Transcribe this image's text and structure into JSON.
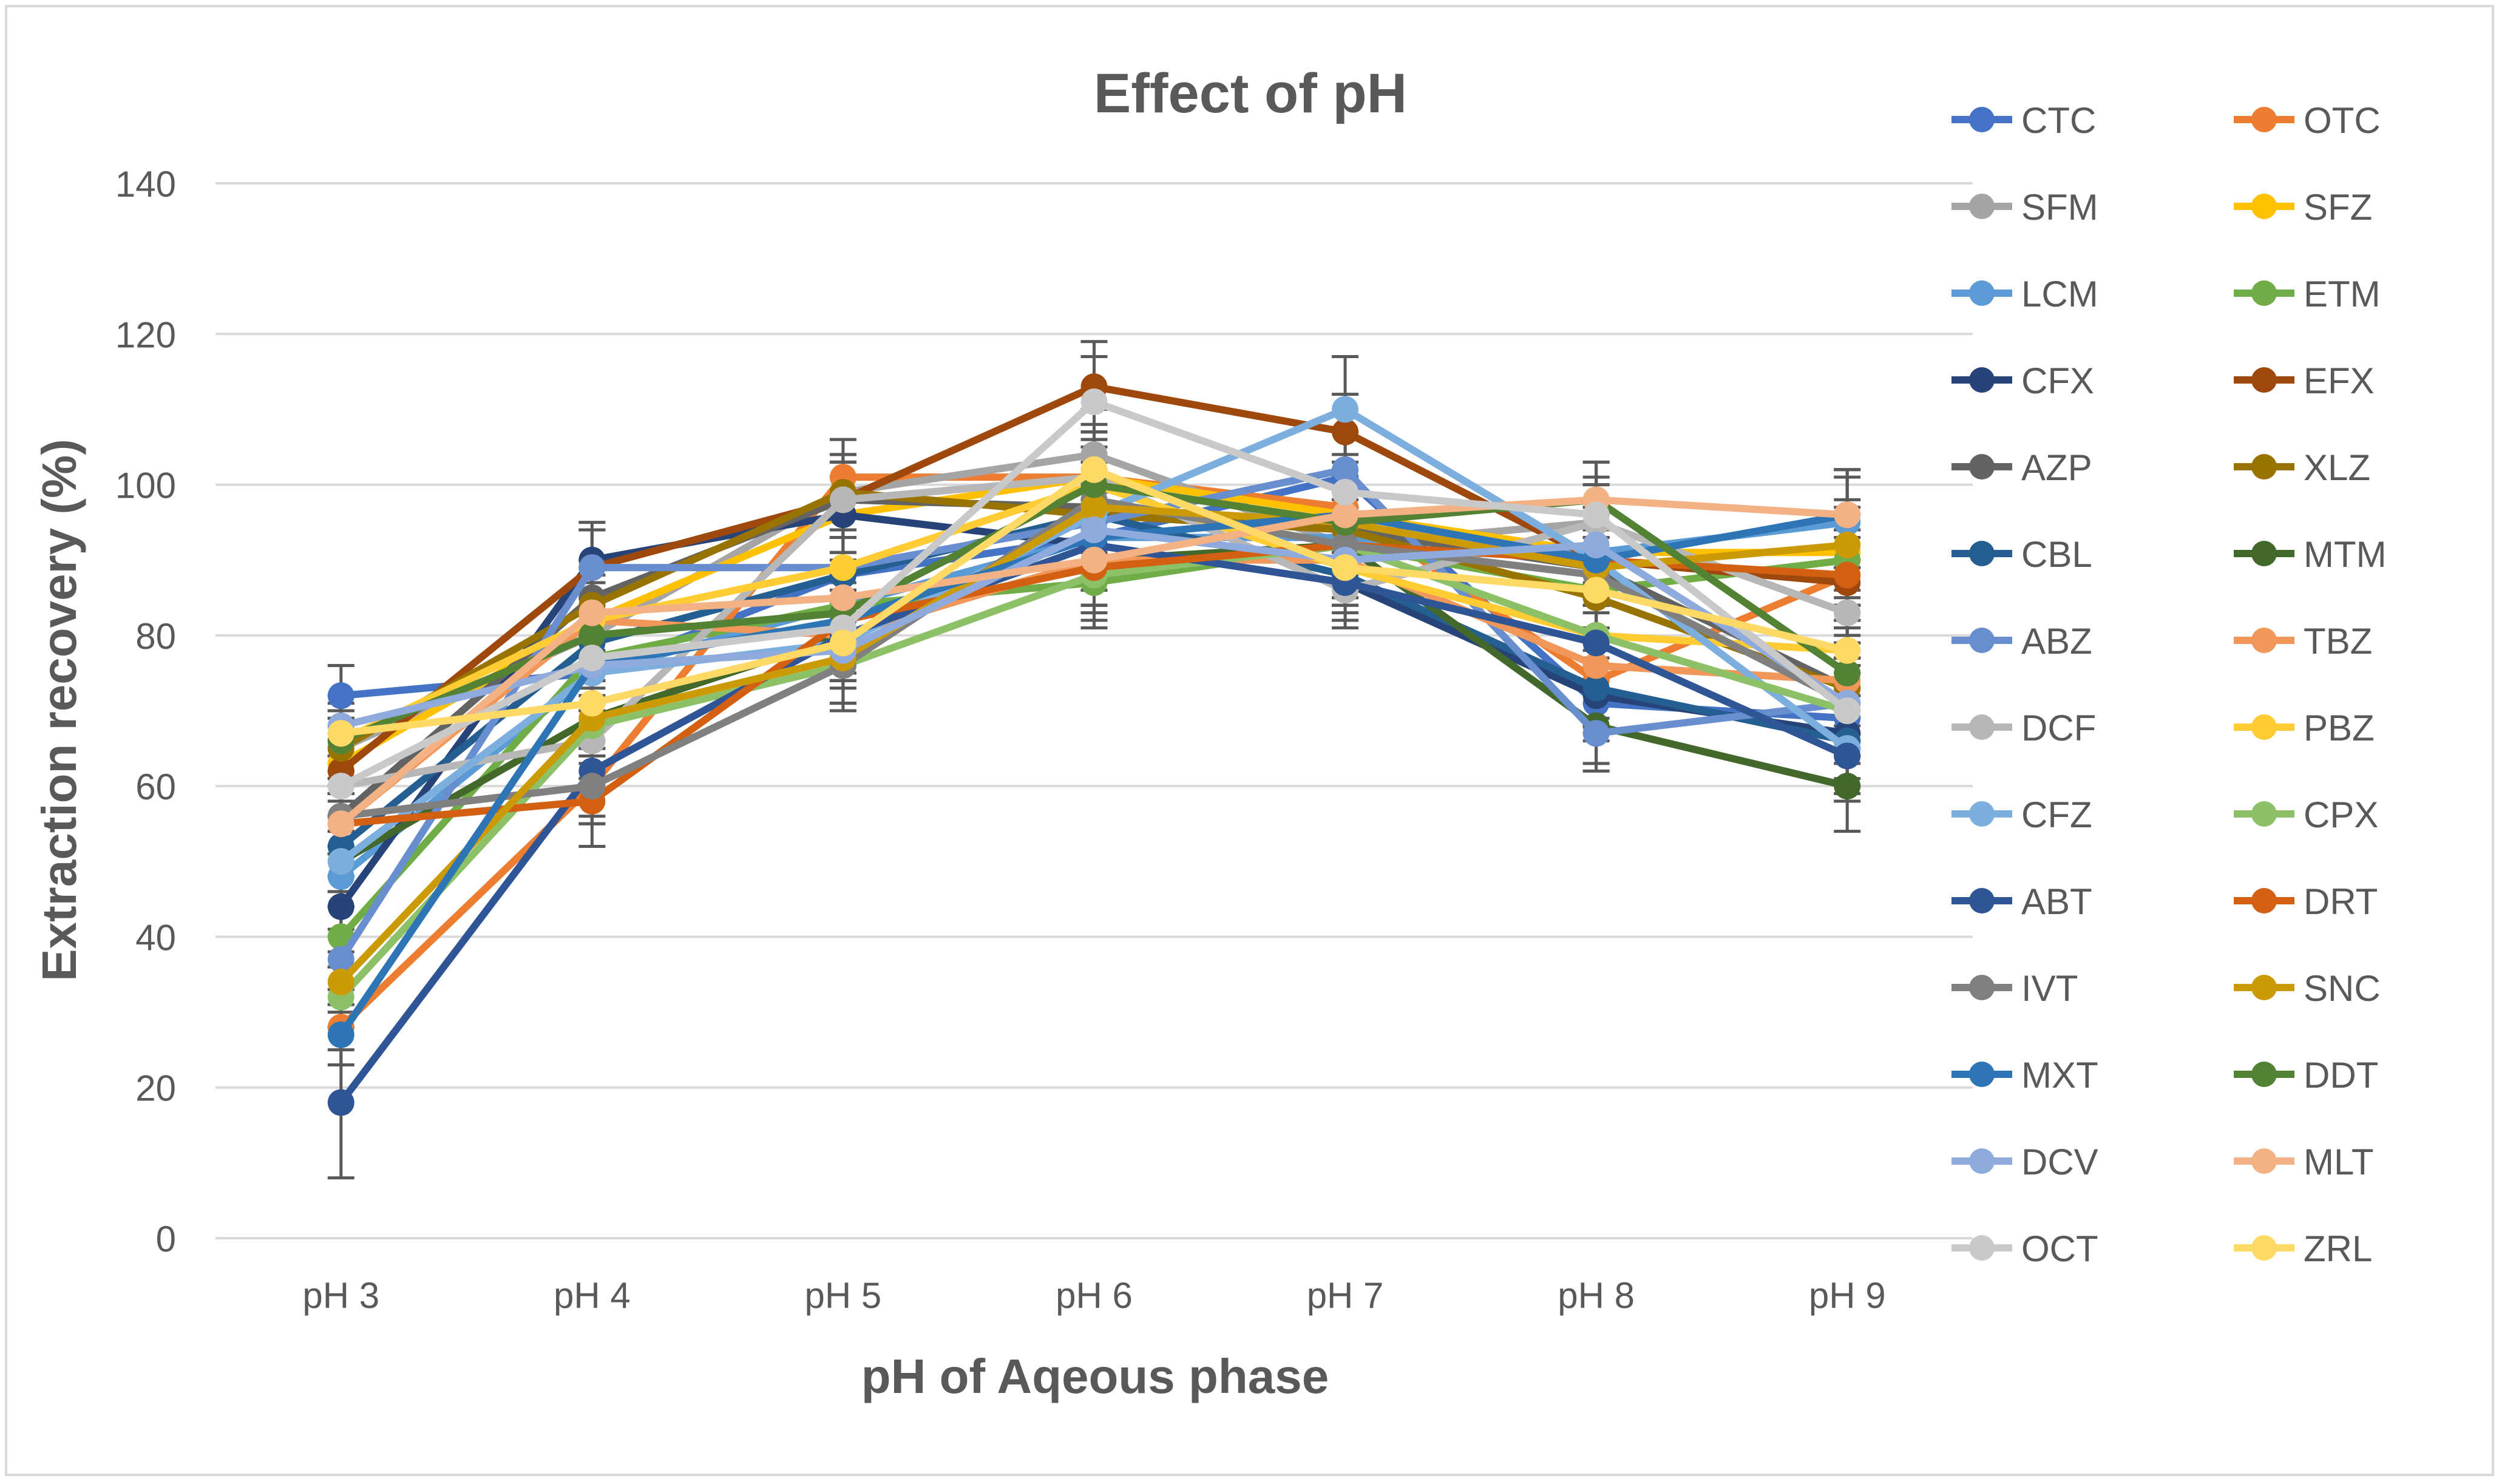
{
  "chart_data": {
    "type": "line",
    "title": "Effect of pH",
    "xlabel": "pH of Aqeous phase",
    "ylabel": "Extraction recovery (%)",
    "categories": [
      "pH 3",
      "pH 4",
      "pH 5",
      "pH 6",
      "pH 7",
      "pH 8",
      "pH 9"
    ],
    "ylim": [
      0,
      140
    ],
    "yticks": [
      0,
      20,
      40,
      60,
      80,
      100,
      120,
      140
    ],
    "grid": "horizontal",
    "legend_position": "right",
    "error_bars": true,
    "series": [
      {
        "name": "CTC",
        "color": "#4472C4",
        "values": [
          72,
          75,
          88,
          93,
          101,
          71,
          69
        ],
        "err": [
          4,
          5,
          5,
          6,
          6,
          5,
          6
        ]
      },
      {
        "name": "OTC",
        "color": "#ED7D31",
        "values": [
          28,
          60,
          101,
          101,
          97,
          74,
          88
        ],
        "err": [
          3,
          5,
          5,
          6,
          5,
          5,
          6
        ]
      },
      {
        "name": "SFM",
        "color": "#A5A5A5",
        "values": [
          65,
          80,
          99,
          104,
          92,
          95,
          83
        ],
        "err": [
          4,
          5,
          5,
          6,
          5,
          5,
          6
        ]
      },
      {
        "name": "SFZ",
        "color": "#FFC000",
        "values": [
          63,
          82,
          96,
          101,
          96,
          91,
          91
        ],
        "err": [
          4,
          5,
          5,
          6,
          5,
          5,
          6
        ]
      },
      {
        "name": "LCM",
        "color": "#5B9BD5",
        "values": [
          48,
          75,
          84,
          93,
          93,
          91,
          95
        ],
        "err": [
          4,
          5,
          5,
          6,
          5,
          5,
          6
        ]
      },
      {
        "name": "ETM",
        "color": "#70AD47",
        "values": [
          40,
          77,
          84,
          87,
          92,
          86,
          90
        ],
        "err": [
          4,
          5,
          5,
          6,
          5,
          5,
          6
        ]
      },
      {
        "name": "CFX",
        "color": "#264478",
        "values": [
          44,
          90,
          96,
          92,
          87,
          72,
          67
        ],
        "err": [
          4,
          5,
          5,
          6,
          5,
          5,
          6
        ]
      },
      {
        "name": "EFX",
        "color": "#9E480E",
        "values": [
          62,
          89,
          98,
          113,
          107,
          90,
          87
        ],
        "err": [
          4,
          5,
          5,
          6,
          5,
          5,
          6
        ]
      },
      {
        "name": "AZP",
        "color": "#636363",
        "values": [
          56,
          85,
          98,
          97,
          94,
          89,
          73
        ],
        "err": [
          4,
          5,
          5,
          6,
          5,
          5,
          6
        ]
      },
      {
        "name": "XLZ",
        "color": "#997300",
        "values": [
          65,
          84,
          99,
          96,
          94,
          85,
          73
        ],
        "err": [
          4,
          5,
          5,
          6,
          5,
          5,
          6
        ]
      },
      {
        "name": "CBL",
        "color": "#255E91",
        "values": [
          52,
          79,
          88,
          96,
          88,
          73,
          66
        ],
        "err": [
          4,
          5,
          5,
          6,
          5,
          5,
          6
        ]
      },
      {
        "name": "MTM",
        "color": "#43682B",
        "values": [
          50,
          69,
          80,
          90,
          92,
          68,
          60
        ],
        "err": [
          4,
          5,
          5,
          6,
          5,
          5,
          6
        ]
      },
      {
        "name": "ABZ",
        "color": "#698ED0",
        "values": [
          37,
          89,
          89,
          95,
          102,
          67,
          71
        ],
        "err": [
          4,
          5,
          5,
          6,
          5,
          5,
          6
        ]
      },
      {
        "name": "TBZ",
        "color": "#F1975A",
        "values": [
          55,
          82,
          80,
          90,
          90,
          76,
          74
        ],
        "err": [
          4,
          5,
          5,
          6,
          5,
          5,
          6
        ]
      },
      {
        "name": "DCF",
        "color": "#B7B7B7",
        "values": [
          60,
          66,
          98,
          101,
          86,
          95,
          83
        ],
        "err": [
          4,
          5,
          5,
          6,
          5,
          5,
          6
        ]
      },
      {
        "name": "PBZ",
        "color": "#FFCD33",
        "values": [
          66,
          82,
          89,
          100,
          89,
          80,
          78
        ],
        "err": [
          4,
          5,
          5,
          6,
          5,
          5,
          6
        ]
      },
      {
        "name": "CFZ",
        "color": "#7CAFDD",
        "values": [
          50,
          75,
          79,
          96,
          110,
          90,
          65
        ],
        "err": [
          4,
          5,
          5,
          6,
          7,
          5,
          6
        ]
      },
      {
        "name": "CPX",
        "color": "#8CC168",
        "values": [
          32,
          68,
          76,
          88,
          92,
          80,
          70
        ],
        "err": [
          4,
          5,
          5,
          6,
          5,
          5,
          6
        ]
      },
      {
        "name": "ABT",
        "color": "#2F5597",
        "values": [
          18,
          62,
          80,
          92,
          87,
          79,
          64
        ],
        "err": [
          10,
          6,
          6,
          6,
          5,
          5,
          6
        ]
      },
      {
        "name": "DRT",
        "color": "#D35F11",
        "values": [
          55,
          58,
          82,
          89,
          92,
          90,
          88
        ],
        "err": [
          4,
          6,
          6,
          6,
          5,
          5,
          6
        ]
      },
      {
        "name": "IVT",
        "color": "#808080",
        "values": [
          56,
          60,
          76,
          98,
          92,
          88,
          71
        ],
        "err": [
          4,
          5,
          6,
          6,
          5,
          5,
          6
        ]
      },
      {
        "name": "SNC",
        "color": "#CC9A06",
        "values": [
          34,
          69,
          77,
          97,
          95,
          89,
          92
        ],
        "err": [
          4,
          5,
          6,
          6,
          5,
          5,
          6
        ]
      },
      {
        "name": "MXT",
        "color": "#2E75B6",
        "values": [
          27,
          76,
          82,
          93,
          96,
          90,
          96
        ],
        "err": [
          4,
          5,
          5,
          6,
          5,
          5,
          6
        ]
      },
      {
        "name": "DDT",
        "color": "#548235",
        "values": [
          66,
          80,
          83,
          100,
          95,
          98,
          75
        ],
        "err": [
          4,
          5,
          5,
          6,
          5,
          5,
          6
        ]
      },
      {
        "name": "DCV",
        "color": "#8FAADC",
        "values": [
          68,
          76,
          78,
          94,
          90,
          92,
          71
        ],
        "err": [
          4,
          5,
          5,
          6,
          5,
          5,
          6
        ]
      },
      {
        "name": "MLT",
        "color": "#F4B183",
        "values": [
          55,
          83,
          85,
          90,
          96,
          98,
          96
        ],
        "err": [
          4,
          5,
          5,
          6,
          5,
          5,
          6
        ]
      },
      {
        "name": "OCT",
        "color": "#C9C9C9",
        "values": [
          60,
          77,
          81,
          111,
          99,
          96,
          70
        ],
        "err": [
          4,
          5,
          5,
          6,
          5,
          5,
          6
        ]
      },
      {
        "name": "ZRL",
        "color": "#FFD966",
        "values": [
          67,
          71,
          79,
          102,
          89,
          86,
          78
        ],
        "err": [
          4,
          5,
          5,
          6,
          5,
          5,
          6
        ]
      }
    ]
  }
}
